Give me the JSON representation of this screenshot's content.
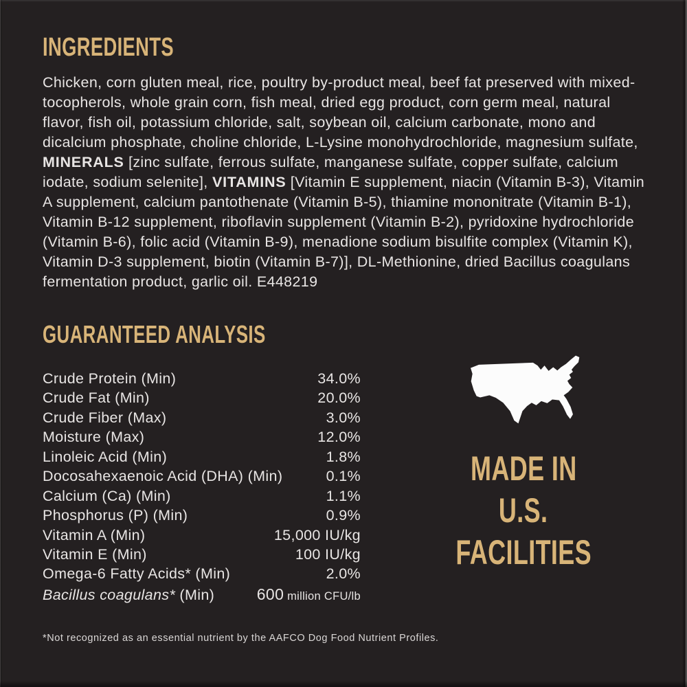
{
  "colors": {
    "background": "#242021",
    "accent_gold": "#d8b478",
    "body_text": "#e8e5e4",
    "map_white": "#fcfcfc"
  },
  "ingredients": {
    "heading": "INGREDIENTS",
    "segments": [
      {
        "style": "normal",
        "text": "Chicken, corn gluten meal, rice, poultry by-product meal, beef fat preserved with mixed-tocopherols, whole grain corn, fish meal, dried egg product, corn germ meal, natural flavor, fish oil, potassium chloride, salt, soybean oil, calcium carbonate, mono and dicalcium phosphate, choline chloride, L-Lysine monohydrochloride, magnesium sulfate, "
      },
      {
        "style": "bold",
        "text": "MINERALS"
      },
      {
        "style": "normal",
        "text": " [zinc sulfate, ferrous sulfate, manganese sulfate, copper sulfate, calcium iodate, sodium selenite], "
      },
      {
        "style": "bold",
        "text": "VITAMINS"
      },
      {
        "style": "normal",
        "text": " [Vitamin E supplement, niacin (Vitamin B-3), Vitamin A supplement, calcium pantothenate (Vitamin B-5), thiamine mononitrate (Vitamin B-1), Vitamin B-12 supplement, riboflavin supplement (Vitamin B-2), pyridoxine hydrochloride (Vitamin B-6), folic acid (Vitamin B-9), menadione sodium bisulfite complex (Vitamin K), Vitamin D-3 supplement, biotin (Vitamin B-7)], DL-Methionine, dried Bacillus coagulans fermentation product, garlic oil. E448219"
      }
    ]
  },
  "guaranteed_analysis": {
    "heading": "GUARANTEED ANALYSIS",
    "rows": [
      {
        "label": "Crude Protein (Min)",
        "value": "34.0%"
      },
      {
        "label": "Crude Fat (Min)",
        "value": "20.0%"
      },
      {
        "label": "Crude Fiber (Max)",
        "value": "3.0%"
      },
      {
        "label": "Moisture (Max)",
        "value": "12.0%"
      },
      {
        "label": "Linoleic Acid (Min)",
        "value": "1.8%"
      },
      {
        "label": "Docosahexaenoic Acid (DHA) (Min)",
        "value": "0.1%"
      },
      {
        "label": "Calcium (Ca) (Min)",
        "value": "1.1%"
      },
      {
        "label": "Phosphorus (P) (Min)",
        "value": "0.9%"
      },
      {
        "label": "Vitamin A (Min)",
        "value": "15,000 IU/kg"
      },
      {
        "label": "Vitamin E (Min)",
        "value": "100 IU/kg"
      },
      {
        "label": "Omega-6 Fatty Acids* (Min)",
        "value": "2.0%"
      },
      {
        "label_italic": "Bacillus coagulans*",
        "label_rest": " (Min)",
        "value_big": "600",
        "value_small": " million CFU/lb"
      }
    ]
  },
  "made_in": {
    "map_icon": "usa-map-silhouette",
    "lines": [
      "MADE IN",
      "U.S.",
      "FACILITIES"
    ]
  },
  "footnote": "*Not recognized as an essential nutrient by the AAFCO Dog Food Nutrient Profiles."
}
